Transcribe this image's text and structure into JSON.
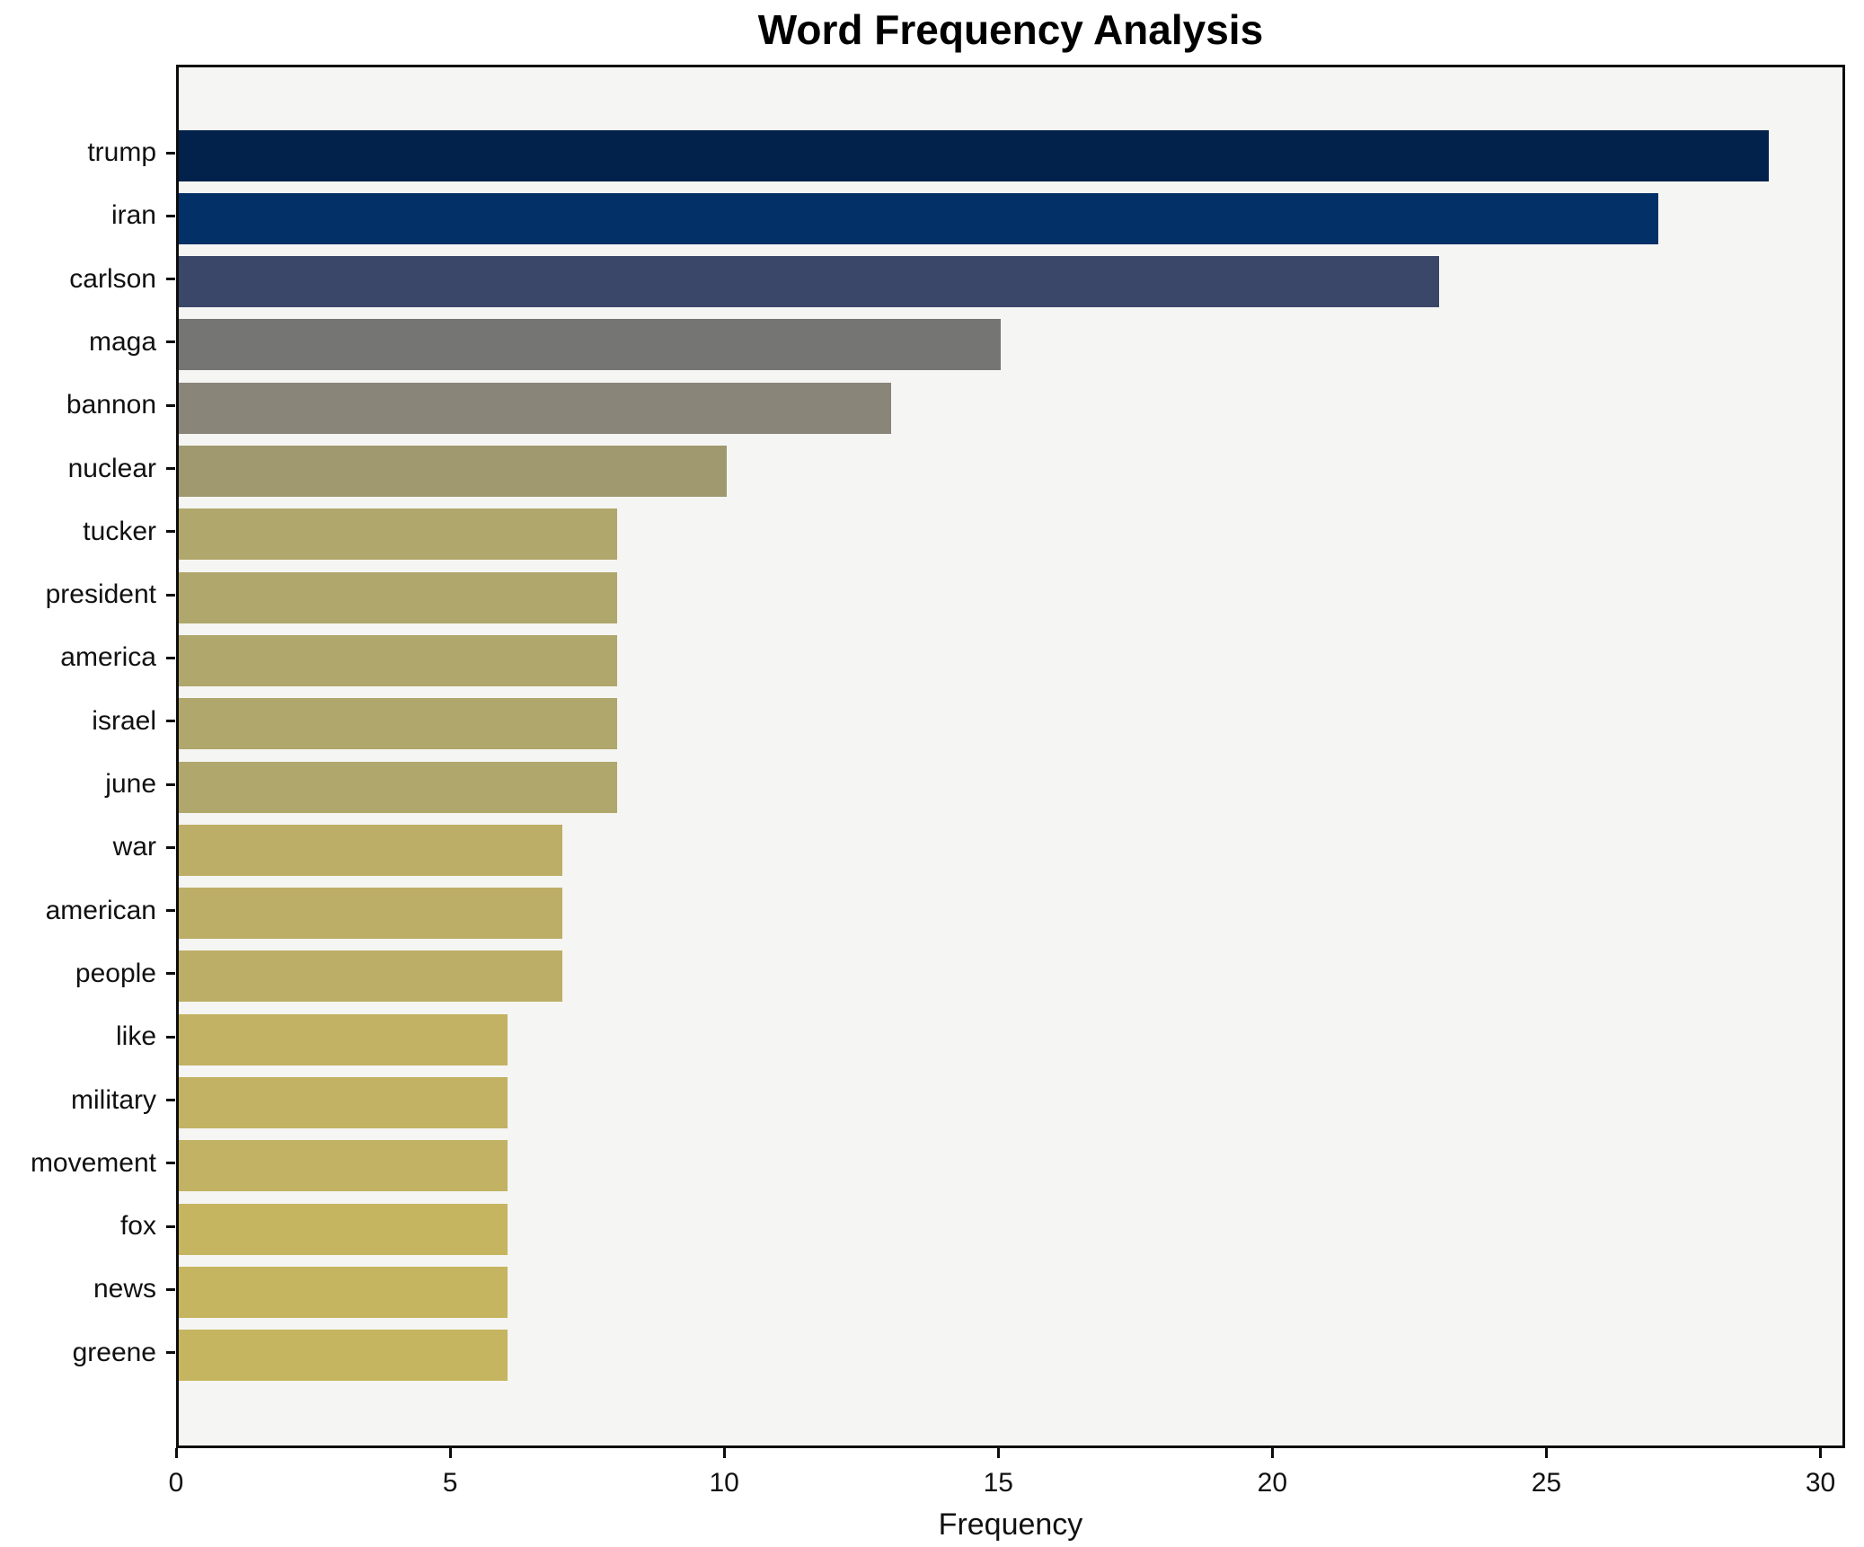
{
  "figure": {
    "background_color": "#ffffff",
    "plot_background_color": "#f5f5f3",
    "spine_color": "#0d0d0d",
    "text_color": "#111111"
  },
  "chart_data": {
    "type": "bar",
    "orientation": "horizontal",
    "title": "Word Frequency Analysis",
    "xlabel": "Frequency",
    "ylabel": "",
    "categories": [
      "trump",
      "iran",
      "carlson",
      "maga",
      "bannon",
      "nuclear",
      "tucker",
      "president",
      "america",
      "israel",
      "june",
      "war",
      "american",
      "people",
      "like",
      "military",
      "movement",
      "fox",
      "news",
      "greene"
    ],
    "values": [
      29,
      27,
      23,
      15,
      13,
      10,
      8,
      8,
      8,
      8,
      8,
      7,
      7,
      7,
      6,
      6,
      6,
      6,
      6,
      6
    ],
    "bar_colors": [
      "#02214b",
      "#043068",
      "#3a4769",
      "#757574",
      "#8a8579",
      "#a09970",
      "#b0a76c",
      "#b0a76c",
      "#b0a76c",
      "#b0a76c",
      "#b0a76c",
      "#bcae67",
      "#bcae67",
      "#bcae67",
      "#c2b263",
      "#c2b263",
      "#c2b263",
      "#c6b560",
      "#c6b560",
      "#c6b560"
    ],
    "xlim": [
      0,
      30.45
    ],
    "x_ticks": [
      0,
      5,
      10,
      15,
      20,
      25,
      30
    ],
    "grid": false,
    "legend": null
  }
}
